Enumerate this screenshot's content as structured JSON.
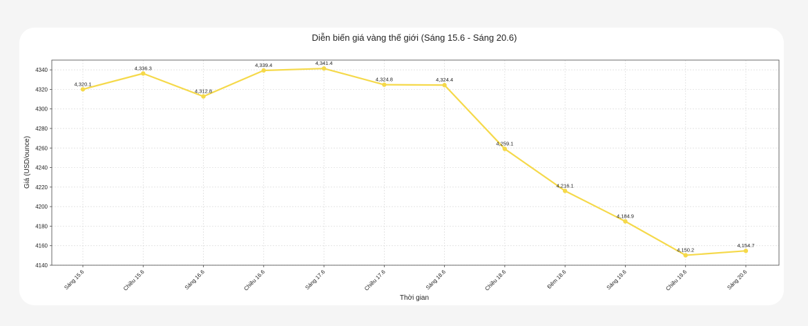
{
  "chart_data": {
    "type": "line",
    "title": "Diễn biến giá vàng thế giới (Sáng 15.6 - Sáng 20.6)",
    "xlabel": "Thời gian",
    "ylabel": "Giá (USD/ounce)",
    "categories": [
      "Sáng 15.6",
      "Chiều 15.6",
      "Sáng 16.6",
      "Chiều 16.6",
      "Sáng 17.6",
      "Chiều 17.6",
      "Sáng 18.6",
      "Chiều 18.6",
      "Đêm 18.6",
      "Sáng 19.6",
      "Chiều 19.6",
      "Sáng 20.6"
    ],
    "values": [
      4320.1,
      4336.3,
      4312.8,
      4339.4,
      4341.4,
      4324.8,
      4324.4,
      4259.1,
      4216.1,
      4184.9,
      4150.2,
      4154.7
    ],
    "data_labels": [
      "4,320.1",
      "4,336.3",
      "4,312.8",
      "4,339.4",
      "4,341.4",
      "4,324.8",
      "4,324.4",
      "4,259.1",
      "4,216.1",
      "4,184.9",
      "4,150.2",
      "4,154.7"
    ],
    "ylim": [
      4140,
      4350
    ],
    "yticks": [
      4140,
      4160,
      4180,
      4200,
      4220,
      4240,
      4260,
      4280,
      4300,
      4320,
      4340
    ],
    "grid": true,
    "color": "#f5d94a"
  }
}
